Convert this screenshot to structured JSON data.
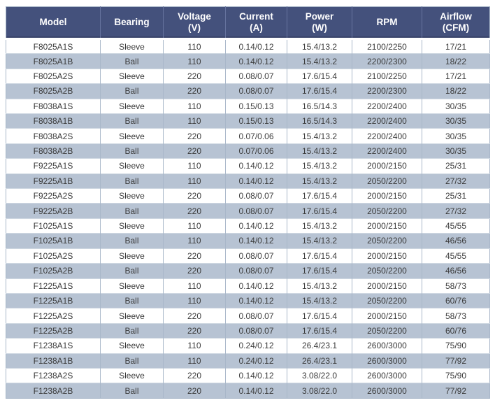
{
  "table": {
    "title": "fan-specification-table",
    "columns": [
      "Model",
      "Bearing",
      "Voltage\n(V)",
      "Current\n(A)",
      "Power\n(W)",
      "RPM",
      "Airflow\n(CFM)"
    ],
    "column_keys": [
      "model",
      "bearing",
      "voltage",
      "current",
      "power",
      "rpm",
      "airflow"
    ],
    "rows": [
      [
        "F8025A1S",
        "Sleeve",
        "110",
        "0.14/0.12",
        "15.4/13.2",
        "2100/2250",
        "17/21"
      ],
      [
        "F8025A1B",
        "Ball",
        "110",
        "0.14/0.12",
        "15.4/13.2",
        "2200/2300",
        "18/22"
      ],
      [
        "F8025A2S",
        "Sleeve",
        "220",
        "0.08/0.07",
        "17.6/15.4",
        "2100/2250",
        "17/21"
      ],
      [
        "F8025A2B",
        "Ball",
        "220",
        "0.08/0.07",
        "17.6/15.4",
        "2200/2300",
        "18/22"
      ],
      [
        "F8038A1S",
        "Sleeve",
        "110",
        "0.15/0.13",
        "16.5/14.3",
        "2200/2400",
        "30/35"
      ],
      [
        "F8038A1B",
        "Ball",
        "110",
        "0.15/0.13",
        "16.5/14.3",
        "2200/2400",
        "30/35"
      ],
      [
        "F8038A2S",
        "Sleeve",
        "220",
        "0.07/0.06",
        "15.4/13.2",
        "2200/2400",
        "30/35"
      ],
      [
        "F8038A2B",
        "Ball",
        "220",
        "0.07/0.06",
        "15.4/13.2",
        "2200/2400",
        "30/35"
      ],
      [
        "F9225A1S",
        "Sleeve",
        "110",
        "0.14/0.12",
        "15.4/13.2",
        "2000/2150",
        "25/31"
      ],
      [
        "F9225A1B",
        "Ball",
        "110",
        "0.14/0.12",
        "15.4/13.2",
        "2050/2200",
        "27/32"
      ],
      [
        "F9225A2S",
        "Sleeve",
        "220",
        "0.08/0.07",
        "17.6/15.4",
        "2000/2150",
        "25/31"
      ],
      [
        "F9225A2B",
        "Ball",
        "220",
        "0.08/0.07",
        "17.6/15.4",
        "2050/2200",
        "27/32"
      ],
      [
        "F1025A1S",
        "Sleeve",
        "110",
        "0.14/0.12",
        "15.4/13.2",
        "2000/2150",
        "45/55"
      ],
      [
        "F1025A1B",
        "Ball",
        "110",
        "0.14/0.12",
        "15.4/13.2",
        "2050/2200",
        "46/56"
      ],
      [
        "F1025A2S",
        "Sleeve",
        "220",
        "0.08/0.07",
        "17.6/15.4",
        "2000/2150",
        "45/55"
      ],
      [
        "F1025A2B",
        "Ball",
        "220",
        "0.08/0.07",
        "17.6/15.4",
        "2050/2200",
        "46/56"
      ],
      [
        "F1225A1S",
        "Sleeve",
        "110",
        "0.14/0.12",
        "15.4/13.2",
        "2000/2150",
        "58/73"
      ],
      [
        "F1225A1B",
        "Ball",
        "110",
        "0.14/0.12",
        "15.4/13.2",
        "2050/2200",
        "60/76"
      ],
      [
        "F1225A2S",
        "Sleeve",
        "220",
        "0.08/0.07",
        "17.6/15.4",
        "2000/2150",
        "58/73"
      ],
      [
        "F1225A2B",
        "Ball",
        "220",
        "0.08/0.07",
        "17.6/15.4",
        "2050/2200",
        "60/76"
      ],
      [
        "F1238A1S",
        "Sleeve",
        "110",
        "0.24/0.12",
        "26.4/23.1",
        "2600/3000",
        "75/90"
      ],
      [
        "F1238A1B",
        "Ball",
        "110",
        "0.24/0.12",
        "26.4/23.1",
        "2600/3000",
        "77/92"
      ],
      [
        "F1238A2S",
        "Sleeve",
        "220",
        "0.14/0.12",
        "3.08/22.0",
        "2600/3000",
        "75/90"
      ],
      [
        "F1238A2B",
        "Ball",
        "220",
        "0.14/0.12",
        "3.08/22.0",
        "2600/3000",
        "77/92"
      ]
    ]
  },
  "colors": {
    "header_bg": "#44517c",
    "header_text": "#ffffff",
    "stripe_bg": "#b7c3d3",
    "row_bg": "#ffffff",
    "cell_text": "#3b3b3b",
    "divider": "#a9b7c9"
  }
}
